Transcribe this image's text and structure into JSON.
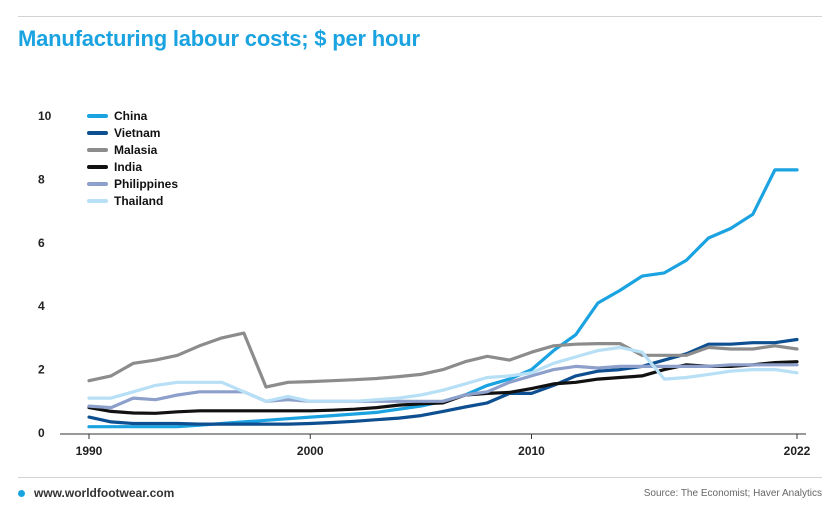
{
  "title": "Manufacturing labour costs; $ per hour",
  "footer": {
    "website": "www.worldfootwear.com",
    "source": "Source: The Economist; Haver Analytics"
  },
  "colors": {
    "title": "#1aa3e0",
    "grid": "#d9dde0"
  },
  "chart_data": {
    "type": "line",
    "title": "Manufacturing labour costs; $ per hour",
    "xlabel": "",
    "ylabel": "",
    "xlim": [
      1990,
      2022
    ],
    "ylim": [
      0,
      10
    ],
    "x_ticks": [
      1990,
      2000,
      2010,
      2022
    ],
    "y_ticks": [
      0,
      2,
      4,
      6,
      8,
      10
    ],
    "grid": false,
    "legend_position": "top-left",
    "x": [
      1990,
      1991,
      1992,
      1993,
      1994,
      1995,
      1996,
      1997,
      1998,
      1999,
      2000,
      2001,
      2002,
      2003,
      2004,
      2005,
      2006,
      2007,
      2008,
      2009,
      2010,
      2011,
      2012,
      2013,
      2014,
      2015,
      2016,
      2017,
      2018,
      2019,
      2020,
      2021,
      2022
    ],
    "series": [
      {
        "name": "China",
        "color": "#1aa3e0",
        "values": [
          0.2,
          0.2,
          0.2,
          0.2,
          0.2,
          0.25,
          0.3,
          0.35,
          0.4,
          0.45,
          0.5,
          0.55,
          0.6,
          0.65,
          0.75,
          0.85,
          1.0,
          1.2,
          1.5,
          1.7,
          2.0,
          2.6,
          3.1,
          4.1,
          4.5,
          4.95,
          5.05,
          5.45,
          6.15,
          6.45,
          6.9,
          8.3,
          8.3
        ]
      },
      {
        "name": "Vietnam",
        "color": "#0d4f91",
        "values": [
          0.5,
          0.35,
          0.3,
          0.3,
          0.3,
          0.28,
          0.28,
          0.28,
          0.28,
          0.28,
          0.3,
          0.33,
          0.37,
          0.42,
          0.47,
          0.55,
          0.68,
          0.82,
          0.95,
          1.25,
          1.25,
          1.5,
          1.8,
          1.95,
          2.0,
          2.1,
          2.3,
          2.5,
          2.8,
          2.8,
          2.85,
          2.85,
          2.95
        ]
      },
      {
        "name": "Malasia",
        "color": "#8c8c8c",
        "values": [
          1.65,
          1.8,
          2.2,
          2.3,
          2.45,
          2.75,
          3.0,
          3.15,
          1.45,
          1.6,
          1.62,
          1.65,
          1.68,
          1.72,
          1.78,
          1.85,
          2.0,
          2.25,
          2.42,
          2.3,
          2.55,
          2.75,
          2.8,
          2.82,
          2.82,
          2.45,
          2.45,
          2.45,
          2.7,
          2.65,
          2.65,
          2.75,
          2.65
        ]
      },
      {
        "name": "India",
        "color": "#111111",
        "values": [
          0.8,
          0.68,
          0.63,
          0.62,
          0.67,
          0.7,
          0.7,
          0.7,
          0.7,
          0.7,
          0.7,
          0.72,
          0.75,
          0.8,
          0.88,
          0.92,
          0.95,
          1.2,
          1.25,
          1.28,
          1.4,
          1.55,
          1.6,
          1.7,
          1.75,
          1.8,
          2.0,
          2.15,
          2.1,
          2.1,
          2.15,
          2.22,
          2.25
        ]
      },
      {
        "name": "Philippines",
        "color": "#8da0cb",
        "values": [
          0.85,
          0.8,
          1.1,
          1.05,
          1.2,
          1.3,
          1.3,
          1.3,
          1.0,
          1.05,
          1.0,
          1.0,
          1.0,
          1.0,
          1.0,
          1.0,
          1.0,
          1.2,
          1.3,
          1.6,
          1.8,
          2.0,
          2.1,
          2.05,
          2.1,
          2.1,
          2.1,
          2.1,
          2.1,
          2.15,
          2.15,
          2.15,
          2.15
        ]
      },
      {
        "name": "Thailand",
        "color": "#b7dff5",
        "values": [
          1.1,
          1.1,
          1.3,
          1.5,
          1.6,
          1.6,
          1.6,
          1.3,
          1.0,
          1.15,
          1.0,
          1.0,
          1.0,
          1.05,
          1.1,
          1.2,
          1.35,
          1.55,
          1.75,
          1.8,
          1.9,
          2.2,
          2.4,
          2.6,
          2.7,
          2.55,
          1.7,
          1.75,
          1.85,
          1.95,
          2.0,
          2.0,
          1.9
        ]
      }
    ]
  }
}
